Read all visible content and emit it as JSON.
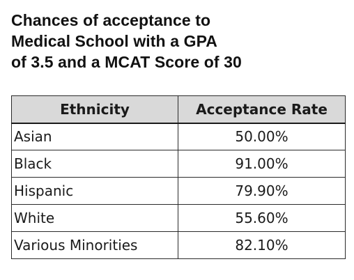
{
  "chart_data": {
    "type": "table",
    "title_lines": [
      "Chances of acceptance to",
      "Medical School with a GPA",
      "of 3.5 and a MCAT Score of 30"
    ],
    "columns": [
      "Ethnicity",
      "Acceptance Rate"
    ],
    "rows": [
      {
        "ethnicity": "Asian",
        "rate": "50.00%"
      },
      {
        "ethnicity": "Black",
        "rate": "91.00%"
      },
      {
        "ethnicity": "Hispanic",
        "rate": "79.90%"
      },
      {
        "ethnicity": "White",
        "rate": "55.60%"
      },
      {
        "ethnicity": "Various Minorities",
        "rate": "82.10%"
      }
    ],
    "header_background": "#d9d9d9",
    "border_color": "#2a2a2a"
  }
}
